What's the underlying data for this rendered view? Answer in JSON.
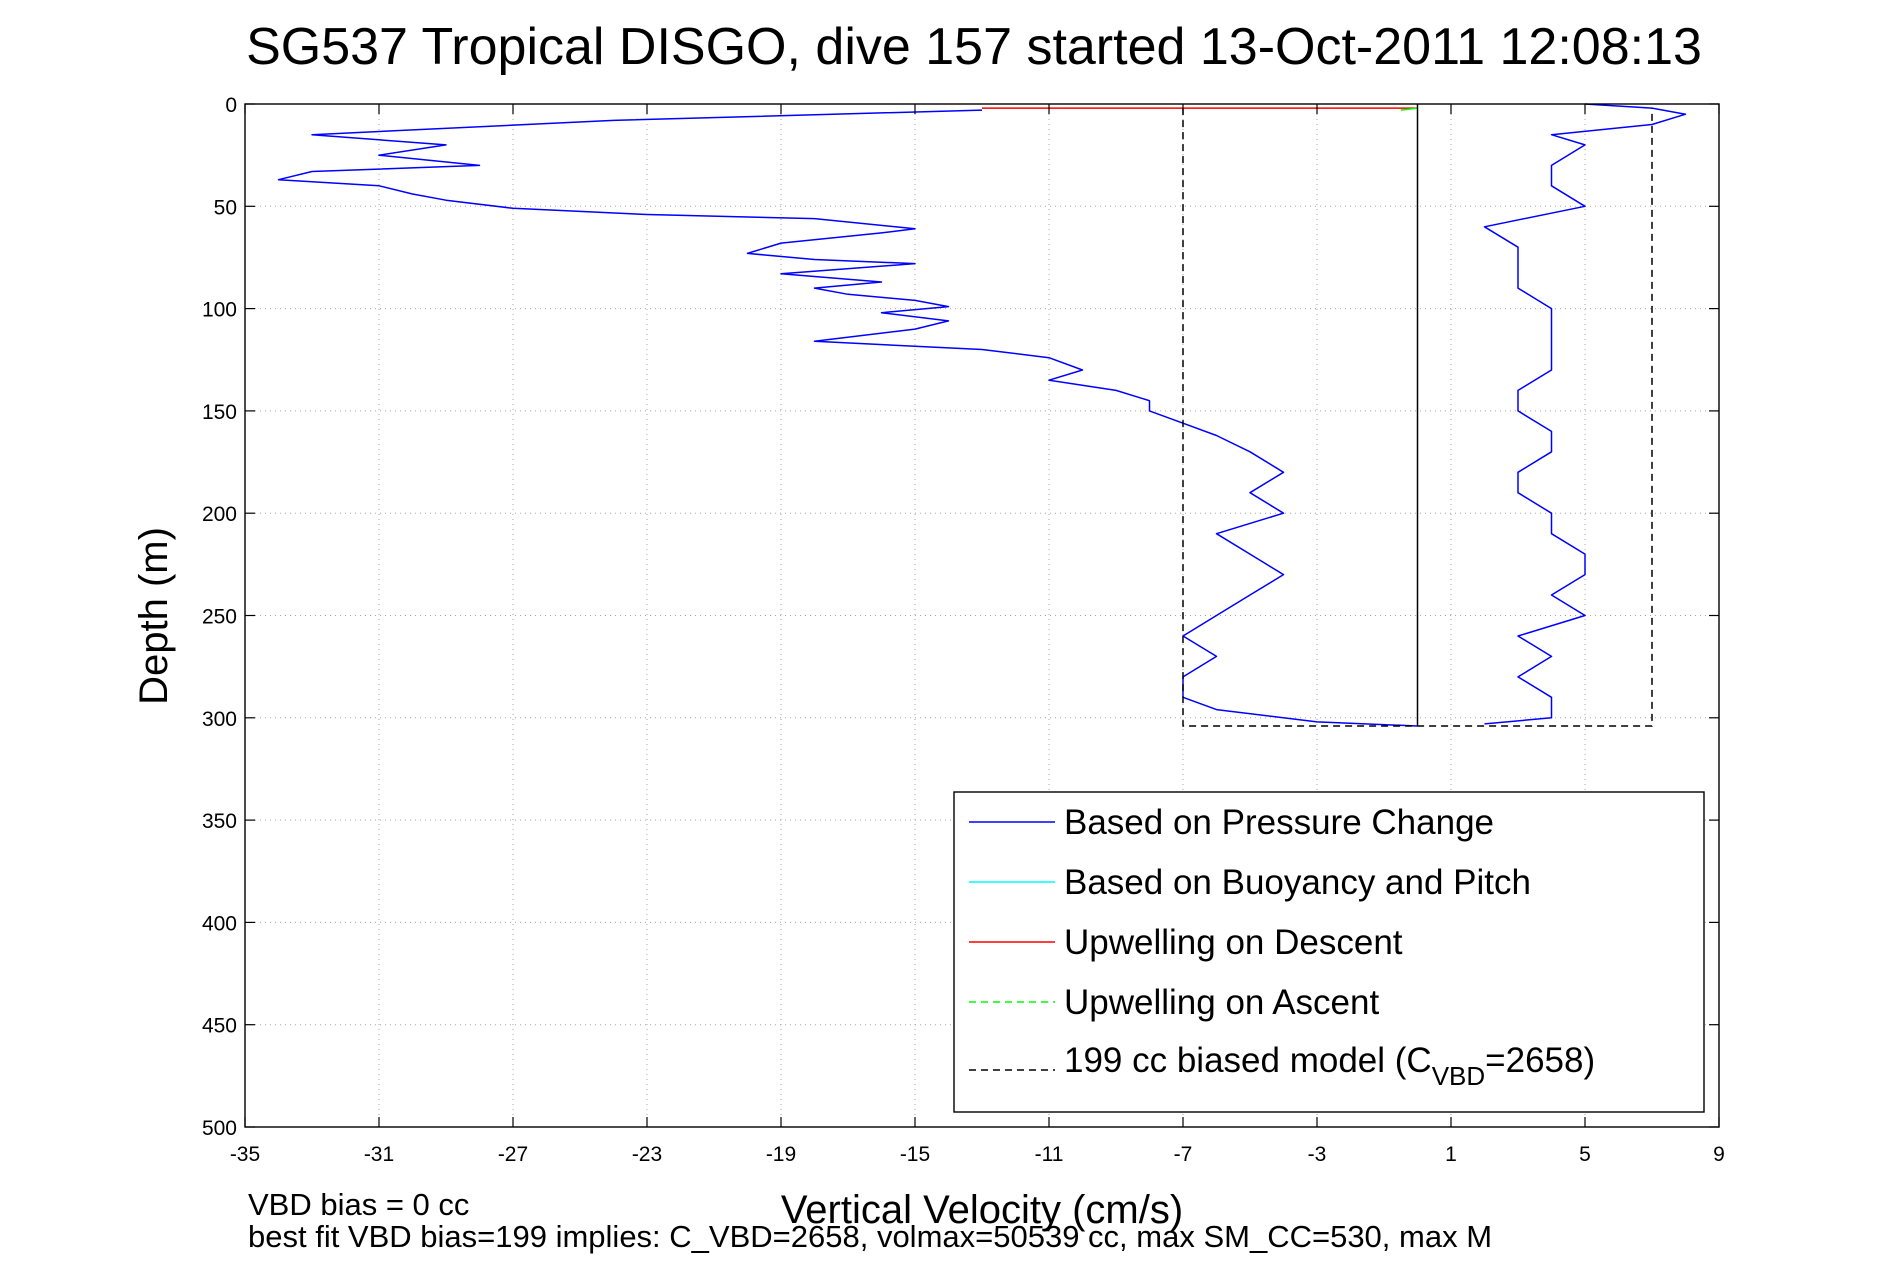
{
  "chart_data": {
    "type": "line",
    "title": "SG537 Tropical DISGO, dive 157 started 13-Oct-2011 12:08:13",
    "xlabel": "Vertical Velocity (cm/s)",
    "ylabel": "Depth (m)",
    "xlim": [
      -35,
      9
    ],
    "ylim": [
      500,
      0
    ],
    "y_reversed": true,
    "grid": true,
    "legend_position": "lower-right",
    "x_ticks": [
      "-35",
      "-31",
      "-27",
      "-23",
      "-19",
      "-15",
      "-11",
      "-7",
      "-3",
      "1",
      "5",
      "9"
    ],
    "y_ticks": [
      "0",
      "50",
      "100",
      "150",
      "200",
      "250",
      "300",
      "350",
      "400",
      "450",
      "500"
    ],
    "legend": [
      {
        "label": "Based on Pressure Change",
        "color": "#0000ff",
        "dash": "solid"
      },
      {
        "label": "Based on Buoyancy and Pitch",
        "color": "#00ffff",
        "dash": "solid"
      },
      {
        "label": "Upwelling on Descent",
        "color": "#ff0000",
        "dash": "solid"
      },
      {
        "label": "Upwelling on Ascent",
        "color": "#00ff00",
        "dash": "dashed"
      },
      {
        "label_prefix": "199 cc biased model (C",
        "label_sub": "VBD",
        "label_suffix": "=2658)",
        "color": "#000000",
        "dash": "dashed"
      }
    ],
    "series": [
      {
        "name": "Based on Pressure Change (descent)",
        "color": "#0000ff",
        "points": [
          [
            -13,
            3
          ],
          [
            -24,
            8
          ],
          [
            -33,
            15
          ],
          [
            -29,
            20
          ],
          [
            -31,
            25
          ],
          [
            -28,
            30
          ],
          [
            -33,
            33
          ],
          [
            -34,
            37
          ],
          [
            -31,
            40
          ],
          [
            -30,
            44
          ],
          [
            -29,
            47
          ],
          [
            -27,
            51
          ],
          [
            -23,
            54
          ],
          [
            -18,
            56
          ],
          [
            -15,
            61
          ],
          [
            -16,
            63
          ],
          [
            -19,
            68
          ],
          [
            -20,
            73
          ],
          [
            -18,
            76
          ],
          [
            -15,
            78
          ],
          [
            -19,
            83
          ],
          [
            -16,
            87
          ],
          [
            -18,
            90
          ],
          [
            -17,
            93
          ],
          [
            -15,
            96
          ],
          [
            -14,
            99
          ],
          [
            -16,
            102
          ],
          [
            -14,
            106
          ],
          [
            -15,
            110
          ],
          [
            -18,
            116
          ],
          [
            -13,
            120
          ],
          [
            -11,
            124
          ],
          [
            -10,
            130
          ],
          [
            -11,
            135
          ],
          [
            -9,
            140
          ],
          [
            -8,
            145
          ],
          [
            -8,
            150
          ],
          [
            -7,
            156
          ],
          [
            -6,
            162
          ],
          [
            -5,
            170
          ],
          [
            -4,
            180
          ],
          [
            -5,
            190
          ],
          [
            -4,
            200
          ],
          [
            -6,
            210
          ],
          [
            -5,
            220
          ],
          [
            -4,
            230
          ],
          [
            -5,
            240
          ],
          [
            -6,
            250
          ],
          [
            -7,
            260
          ],
          [
            -6,
            270
          ],
          [
            -7,
            280
          ],
          [
            -7,
            290
          ],
          [
            -6,
            296
          ],
          [
            -3,
            302
          ],
          [
            0,
            304
          ]
        ]
      },
      {
        "name": "Based on Pressure Change (ascent)",
        "color": "#0000ff",
        "points": [
          [
            2,
            303
          ],
          [
            4,
            300
          ],
          [
            4,
            290
          ],
          [
            3,
            280
          ],
          [
            4,
            270
          ],
          [
            3,
            260
          ],
          [
            5,
            250
          ],
          [
            4,
            240
          ],
          [
            5,
            230
          ],
          [
            5,
            220
          ],
          [
            4,
            210
          ],
          [
            4,
            200
          ],
          [
            3,
            190
          ],
          [
            3,
            180
          ],
          [
            4,
            170
          ],
          [
            4,
            160
          ],
          [
            3,
            150
          ],
          [
            3,
            140
          ],
          [
            4,
            130
          ],
          [
            4,
            120
          ],
          [
            4,
            110
          ],
          [
            4,
            100
          ],
          [
            3,
            90
          ],
          [
            3,
            80
          ],
          [
            3,
            70
          ],
          [
            2,
            60
          ],
          [
            5,
            50
          ],
          [
            4,
            40
          ],
          [
            4,
            30
          ],
          [
            5,
            20
          ],
          [
            4,
            15
          ],
          [
            7,
            10
          ],
          [
            8,
            5
          ],
          [
            7,
            2
          ],
          [
            5,
            0
          ]
        ]
      },
      {
        "name": "Upwelling on Descent",
        "color": "#ff0000",
        "points": [
          [
            -13,
            2
          ],
          [
            -11,
            2
          ],
          [
            -9,
            2
          ],
          [
            -7,
            2
          ],
          [
            -5,
            2
          ],
          [
            -3,
            2
          ],
          [
            -1,
            2
          ],
          [
            0,
            2
          ]
        ]
      },
      {
        "name": "Upwelling on Ascent",
        "color": "#00ff00",
        "points": [
          [
            0,
            2
          ],
          [
            -0.5,
            3
          ]
        ]
      },
      {
        "name": "Vertical reference at 0",
        "color": "#000000",
        "points": [
          [
            0,
            0
          ],
          [
            0,
            304
          ]
        ]
      },
      {
        "name": "199 cc biased model (C_VBD=2658)",
        "color": "#000000",
        "dash": "dashed",
        "points": [
          [
            -7,
            2
          ],
          [
            -7,
            304
          ],
          [
            7,
            304
          ],
          [
            7,
            2
          ]
        ]
      }
    ]
  },
  "footer": {
    "line1": "VBD bias = 0 cc",
    "line2": "best fit VBD bias=199 implies: C_VBD=2658, volmax=50539 cc, max SM_CC=530, max M"
  }
}
